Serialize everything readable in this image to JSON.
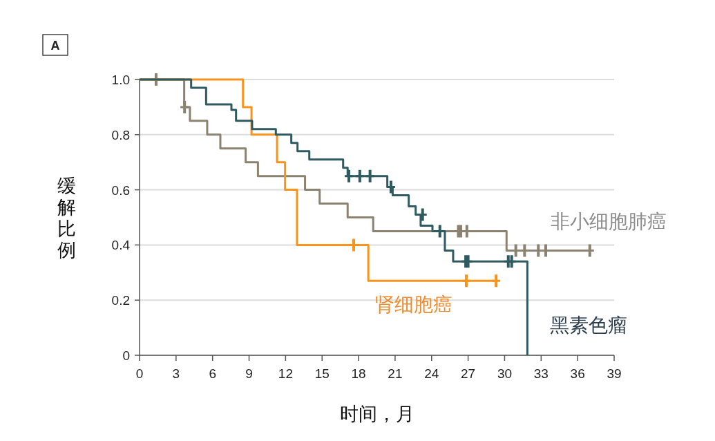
{
  "chart_data": {
    "type": "step",
    "title": "A",
    "xlabel": "时间，月",
    "ylabel": "缓解比例",
    "xlim": [
      0,
      39
    ],
    "xticks": [
      0,
      3,
      6,
      9,
      12,
      15,
      18,
      21,
      24,
      27,
      30,
      33,
      36,
      39
    ],
    "ylim": [
      0,
      1
    ],
    "yticks": [
      {
        "value": 0,
        "label": "0"
      },
      {
        "value": 0.2,
        "label": "0.2"
      },
      {
        "value": 0.4,
        "label": "0.4"
      },
      {
        "value": 0.6,
        "label": "0.6"
      },
      {
        "value": 0.8,
        "label": "0.8"
      },
      {
        "value": 1,
        "label": "1.0"
      }
    ],
    "grid": "y",
    "line_style": "solid",
    "series": [
      {
        "name": "非小细胞肺癌",
        "type": "step",
        "color": "#8c8271",
        "x": [
          0,
          3.67,
          4.14,
          5.56,
          6.64,
          8.72,
          9.73,
          13.6,
          14.8,
          17.1,
          19.2,
          30.16,
          37.0
        ],
        "values": [
          1,
          0.9,
          0.85,
          0.8,
          0.75,
          0.7,
          0.65,
          0.6,
          0.55,
          0.5,
          0.45,
          0.38,
          0.38
        ]
      },
      {
        "type": "scatter",
        "marker": "cross",
        "color": "#8c8271",
        "x": [
          1.36,
          3.7,
          26.2,
          26.4,
          26.9,
          30.92,
          31.64,
          32.77,
          33.38,
          37.0
        ],
        "values": [
          1,
          0.9,
          0.45,
          0.45,
          0.45,
          0.38,
          0.38,
          0.38,
          0.38,
          0.38
        ]
      },
      {
        "name": "肾细胞癌",
        "type": "step",
        "color": "#f7941d",
        "x": [
          0,
          8.5,
          9.2,
          11.3,
          11.96,
          12.94,
          18.8,
          29.3
        ],
        "values": [
          1,
          0.9,
          0.8,
          0.7,
          0.6,
          0.4,
          0.27,
          0.27
        ]
      },
      {
        "type": "scatter",
        "marker": "cross",
        "color": "#f7941d",
        "x": [
          17.6,
          26.85,
          29.3
        ],
        "values": [
          0.4,
          0.27,
          0.27
        ]
      },
      {
        "name": "黑素色瘤",
        "type": "step",
        "color": "#2f5b60",
        "x": [
          0,
          4.24,
          5.47,
          7.55,
          7.93,
          9.25,
          11.2,
          12.47,
          12.98,
          13.95,
          16.73,
          17.1,
          20.36,
          20.8,
          22.12,
          22.69,
          23.1,
          24.07,
          25.09,
          25.77,
          31.87
        ],
        "values": [
          1,
          0.97,
          0.91,
          0.89,
          0.85,
          0.82,
          0.8,
          0.77,
          0.74,
          0.71,
          0.68,
          0.65,
          0.61,
          0.58,
          0.54,
          0.51,
          0.47,
          0.45,
          0.38,
          0.34,
          0
        ]
      },
      {
        "type": "scatter",
        "marker": "cross",
        "color": "#2f5b60",
        "x": [
          17.2,
          18.1,
          18.94,
          20.66,
          23.26,
          24.68,
          26.8,
          27.0,
          30.3,
          30.58
        ],
        "values": [
          0.65,
          0.65,
          0.65,
          0.61,
          0.51,
          0.45,
          0.34,
          0.34,
          0.34,
          0.34
        ]
      }
    ]
  }
}
